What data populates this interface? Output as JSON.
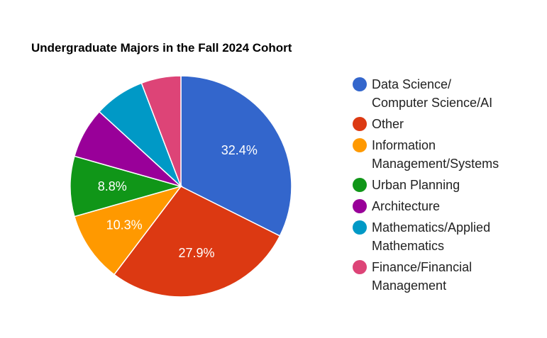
{
  "chart_data": {
    "type": "pie",
    "title": "Undergraduate Majors in the Fall 2024 Cohort",
    "slices": [
      {
        "label": "Data Science/\nComputer Science/AI",
        "value": 32.4,
        "color": "#3366cc",
        "data_label": "32.4%"
      },
      {
        "label": "Other",
        "value": 27.9,
        "color": "#dc3912",
        "data_label": "27.9%"
      },
      {
        "label": "Information\nManagement/Systems",
        "value": 10.3,
        "color": "#ff9900",
        "data_label": "10.3%"
      },
      {
        "label": "Urban Planning",
        "value": 8.8,
        "color": "#109618",
        "data_label": "8.8%"
      },
      {
        "label": "Architecture",
        "value": 7.4,
        "color": "#990099",
        "data_label": ""
      },
      {
        "label": "Mathematics/Applied\nMathematics",
        "value": 7.4,
        "color": "#0099c6",
        "data_label": ""
      },
      {
        "label": "Finance/Financial\nManagement",
        "value": 5.8,
        "color": "#dd4477",
        "data_label": ""
      }
    ],
    "legend_position": "right"
  }
}
